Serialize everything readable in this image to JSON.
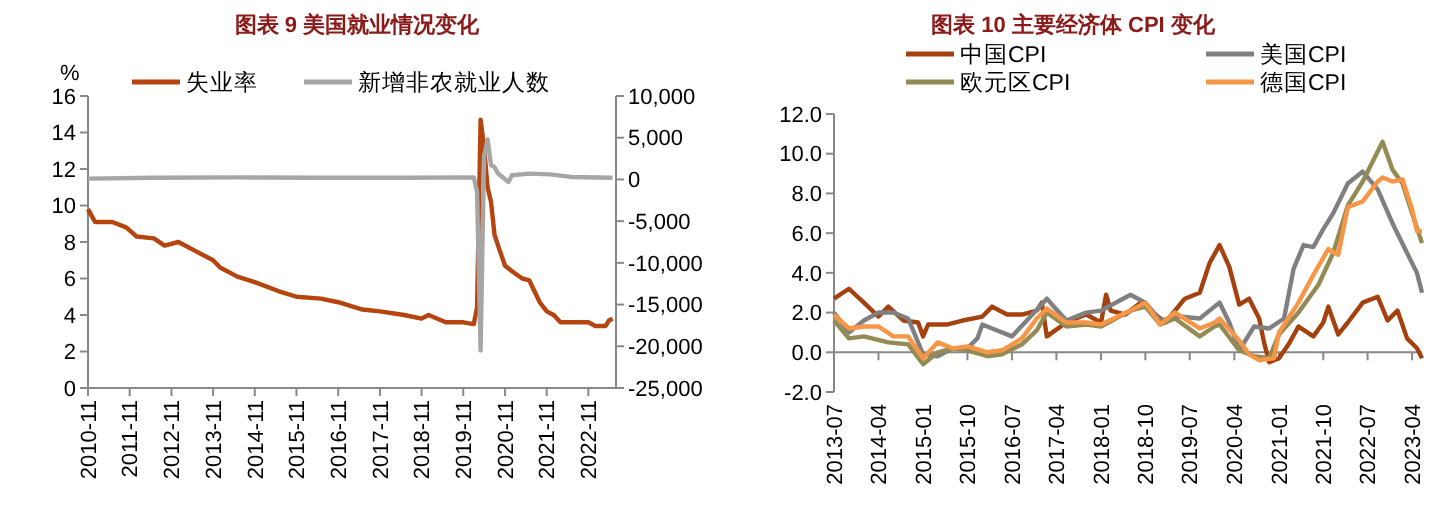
{
  "chart_data": [
    {
      "type": "line",
      "title": "图表 9  美国就业情况变化",
      "ylabel": "%",
      "legend": "top",
      "xlim": [
        "2010-11",
        "2023-07"
      ],
      "xticks": [
        "2010-11",
        "2011-11",
        "2012-11",
        "2013-11",
        "2014-11",
        "2015-11",
        "2016-11",
        "2017-11",
        "2018-11",
        "2019-11",
        "2020-11",
        "2021-11",
        "2022-11"
      ],
      "ylim": [
        0,
        16
      ],
      "yticks": [
        0,
        2,
        4,
        6,
        8,
        10,
        12,
        14,
        16
      ],
      "y2lim": [
        -25000,
        10000
      ],
      "y2ticks": [
        {
          "value": -25000,
          "label": "-25,000"
        },
        {
          "value": -20000,
          "label": "-20,000"
        },
        {
          "value": -15000,
          "label": "-15,000"
        },
        {
          "value": -10000,
          "label": "-10,000"
        },
        {
          "value": -5000,
          "label": "-5,000"
        },
        0,
        {
          "value": 5000,
          "label": "5,000"
        },
        {
          "value": 10000,
          "label": "10,000"
        }
      ],
      "series": [
        {
          "name": "失业率",
          "color": "#b5440f",
          "x": [
            "2010-11",
            "2011-01",
            "2011-06",
            "2011-10",
            "2012-01",
            "2012-06",
            "2012-09",
            "2013-01",
            "2013-06",
            "2013-11",
            "2014-01",
            "2014-06",
            "2014-11",
            "2015-06",
            "2015-11",
            "2016-06",
            "2016-11",
            "2017-06",
            "2017-11",
            "2018-06",
            "2018-11",
            "2019-01",
            "2019-06",
            "2019-11",
            "2020-02",
            "2020-03",
            "2020-04",
            "2020-05",
            "2020-06",
            "2020-07",
            "2020-08",
            "2020-09",
            "2020-11",
            "2021-01",
            "2021-04",
            "2021-06",
            "2021-09",
            "2021-11",
            "2022-01",
            "2022-03",
            "2022-11",
            "2023-01",
            "2023-04",
            "2023-05",
            "2023-06"
          ],
          "values": [
            9.8,
            9.1,
            9.1,
            8.8,
            8.3,
            8.2,
            7.8,
            8.0,
            7.5,
            7.0,
            6.6,
            6.1,
            5.8,
            5.3,
            5.0,
            4.9,
            4.7,
            4.3,
            4.2,
            4.0,
            3.8,
            4.0,
            3.6,
            3.6,
            3.5,
            4.4,
            14.7,
            13.2,
            11.0,
            10.2,
            8.4,
            7.8,
            6.7,
            6.4,
            6.0,
            5.9,
            4.7,
            4.2,
            4.0,
            3.6,
            3.6,
            3.4,
            3.4,
            3.7,
            3.8
          ]
        },
        {
          "name": "新增非农就业人数",
          "color": "#a6a6a6",
          "axis": "y2",
          "x": [
            "2010-11",
            "2012-06",
            "2014-06",
            "2016-06",
            "2018-06",
            "2020-02",
            "2020-03",
            "2020-04",
            "2020-05",
            "2020-06",
            "2020-07",
            "2020-08",
            "2020-09",
            "2020-12",
            "2021-01",
            "2021-06",
            "2021-12",
            "2022-06",
            "2023-06"
          ],
          "values": [
            100,
            200,
            250,
            200,
            200,
            250,
            -1500,
            -20500,
            2700,
            4800,
            1700,
            1500,
            700,
            -300,
            500,
            700,
            600,
            300,
            200
          ]
        }
      ]
    },
    {
      "type": "line",
      "title": "图表 10 主要经济体 CPI 变化",
      "legend": "top",
      "xlim": [
        "2013-07",
        "2023-06"
      ],
      "xticks": [
        "2013-07",
        "2014-04",
        "2015-01",
        "2015-10",
        "2016-07",
        "2017-04",
        "2018-01",
        "2018-10",
        "2019-07",
        "2020-04",
        "2021-01",
        "2021-10",
        "2022-07",
        "2023-04"
      ],
      "ylim": [
        -2,
        12
      ],
      "yticks": [
        {
          "value": -2,
          "label": "-2.0"
        },
        {
          "value": 0,
          "label": "0.0"
        },
        {
          "value": 2,
          "label": "2.0"
        },
        {
          "value": 4,
          "label": "4.0"
        },
        {
          "value": 6,
          "label": "6.0"
        },
        {
          "value": 8,
          "label": "8.0"
        },
        {
          "value": 10,
          "label": "10.0"
        },
        {
          "value": 12,
          "label": "12.0"
        }
      ],
      "series": [
        {
          "name": "中国CPI",
          "color": "#a5410f",
          "x": [
            "2013-07",
            "2013-10",
            "2014-01",
            "2014-04",
            "2014-06",
            "2014-09",
            "2014-12",
            "2015-01",
            "2015-02",
            "2015-06",
            "2015-09",
            "2016-01",
            "2016-03",
            "2016-06",
            "2016-09",
            "2016-12",
            "2017-01",
            "2017-02",
            "2017-06",
            "2017-10",
            "2018-01",
            "2018-02",
            "2018-03",
            "2018-06",
            "2018-09",
            "2018-12",
            "2019-02",
            "2019-06",
            "2019-09",
            "2019-11",
            "2020-01",
            "2020-03",
            "2020-05",
            "2020-07",
            "2020-09",
            "2020-10",
            "2020-11",
            "2021-01",
            "2021-03",
            "2021-05",
            "2021-08",
            "2021-10",
            "2021-11",
            "2022-01",
            "2022-03",
            "2022-06",
            "2022-09",
            "2022-11",
            "2023-01",
            "2023-03",
            "2023-05",
            "2023-06"
          ],
          "values": [
            2.7,
            3.2,
            2.5,
            1.8,
            2.3,
            1.6,
            1.5,
            0.8,
            1.4,
            1.4,
            1.6,
            1.8,
            2.3,
            1.9,
            1.9,
            2.1,
            2.5,
            0.8,
            1.5,
            1.9,
            1.5,
            2.9,
            2.1,
            1.9,
            2.5,
            1.9,
            1.5,
            2.7,
            3.0,
            4.5,
            5.4,
            4.3,
            2.4,
            2.7,
            1.7,
            0.5,
            -0.5,
            -0.3,
            0.4,
            1.3,
            0.8,
            1.5,
            2.3,
            0.9,
            1.5,
            2.5,
            2.8,
            1.6,
            2.1,
            0.7,
            0.2,
            -0.3
          ]
        },
        {
          "name": "美国CPI",
          "color": "#808080",
          "x": [
            "2013-07",
            "2013-10",
            "2014-01",
            "2014-04",
            "2014-07",
            "2014-10",
            "2015-01",
            "2015-04",
            "2015-07",
            "2015-10",
            "2015-12",
            "2016-01",
            "2016-04",
            "2016-07",
            "2016-10",
            "2017-02",
            "2017-06",
            "2017-10",
            "2018-01",
            "2018-07",
            "2018-10",
            "2019-01",
            "2019-05",
            "2019-09",
            "2019-12",
            "2020-01",
            "2020-03",
            "2020-05",
            "2020-08",
            "2020-11",
            "2021-02",
            "2021-04",
            "2021-06",
            "2021-08",
            "2021-10",
            "2021-12",
            "2022-03",
            "2022-06",
            "2022-09",
            "2022-12",
            "2023-03",
            "2023-05",
            "2023-06"
          ],
          "values": [
            2.0,
            1.0,
            1.6,
            2.0,
            2.0,
            1.7,
            -0.1,
            -0.2,
            0.2,
            0.2,
            0.7,
            1.4,
            1.1,
            0.8,
            1.6,
            2.7,
            1.6,
            2.0,
            2.1,
            2.9,
            2.5,
            1.6,
            1.8,
            1.7,
            2.3,
            2.5,
            1.5,
            0.1,
            1.3,
            1.2,
            1.7,
            4.2,
            5.4,
            5.3,
            6.2,
            7.0,
            8.5,
            9.1,
            8.2,
            6.5,
            5.0,
            4.0,
            3.0
          ]
        },
        {
          "name": "欧元区CPI",
          "color": "#948a54",
          "x": [
            "2013-07",
            "2013-10",
            "2014-01",
            "2014-06",
            "2014-10",
            "2015-01",
            "2015-04",
            "2015-07",
            "2015-10",
            "2016-02",
            "2016-05",
            "2016-09",
            "2016-12",
            "2017-02",
            "2017-06",
            "2017-10",
            "2018-01",
            "2018-07",
            "2018-10",
            "2019-01",
            "2019-04",
            "2019-09",
            "2019-12",
            "2020-01",
            "2020-05",
            "2020-08",
            "2020-11",
            "2021-01",
            "2021-05",
            "2021-09",
            "2021-12",
            "2022-03",
            "2022-06",
            "2022-10",
            "2022-12",
            "2023-02",
            "2023-04",
            "2023-06"
          ],
          "values": [
            1.6,
            0.7,
            0.8,
            0.5,
            0.4,
            -0.6,
            0.0,
            0.2,
            0.1,
            -0.2,
            -0.1,
            0.4,
            1.1,
            2.0,
            1.3,
            1.4,
            1.3,
            2.1,
            2.3,
            1.4,
            1.7,
            0.8,
            1.3,
            1.4,
            0.1,
            -0.2,
            -0.3,
            0.9,
            2.0,
            3.4,
            5.0,
            7.4,
            8.6,
            10.6,
            9.2,
            8.5,
            7.0,
            5.5
          ]
        },
        {
          "name": "德国CPI",
          "color": "#f79646",
          "x": [
            "2013-07",
            "2013-10",
            "2014-01",
            "2014-04",
            "2014-07",
            "2014-10",
            "2015-01",
            "2015-04",
            "2015-07",
            "2015-10",
            "2016-02",
            "2016-05",
            "2016-09",
            "2016-12",
            "2017-02",
            "2017-06",
            "2017-10",
            "2018-01",
            "2018-07",
            "2018-10",
            "2019-01",
            "2019-04",
            "2019-09",
            "2019-12",
            "2020-01",
            "2020-05",
            "2020-07",
            "2020-09",
            "2020-12",
            "2021-01",
            "2021-05",
            "2021-08",
            "2021-11",
            "2022-01",
            "2022-03",
            "2022-06",
            "2022-09",
            "2022-10",
            "2022-12",
            "2023-02",
            "2023-04",
            "2023-05",
            "2023-06"
          ],
          "values": [
            1.9,
            1.2,
            1.3,
            1.3,
            0.8,
            0.8,
            -0.3,
            0.5,
            0.2,
            0.3,
            0.0,
            0.1,
            0.7,
            1.7,
            2.2,
            1.5,
            1.5,
            1.4,
            2.1,
            2.5,
            1.4,
            2.0,
            1.2,
            1.5,
            1.7,
            0.6,
            -0.1,
            -0.4,
            -0.3,
            1.0,
            2.5,
            3.9,
            5.2,
            4.9,
            7.3,
            7.6,
            8.6,
            8.8,
            8.6,
            8.7,
            7.2,
            6.1,
            6.1
          ]
        }
      ]
    }
  ]
}
